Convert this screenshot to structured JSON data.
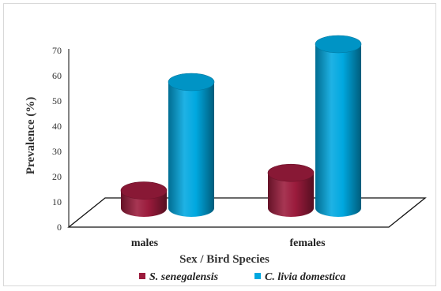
{
  "chart_data": {
    "type": "bar",
    "style": "3d-cylinder",
    "categories": [
      "males",
      "females"
    ],
    "series": [
      {
        "name": "S. senegalensis",
        "color": "#9b1b3c",
        "values": [
          7,
          14
        ]
      },
      {
        "name": "C. livia domestica",
        "color": "#00a8e0",
        "values": [
          50,
          65
        ]
      }
    ],
    "xlabel": "Sex / Bird Species",
    "ylabel": "Prevalence (%)",
    "ylim": [
      0,
      70
    ],
    "yticks": [
      0,
      10,
      20,
      30,
      40,
      50,
      60,
      70
    ],
    "grid": false,
    "legend_position": "bottom"
  }
}
